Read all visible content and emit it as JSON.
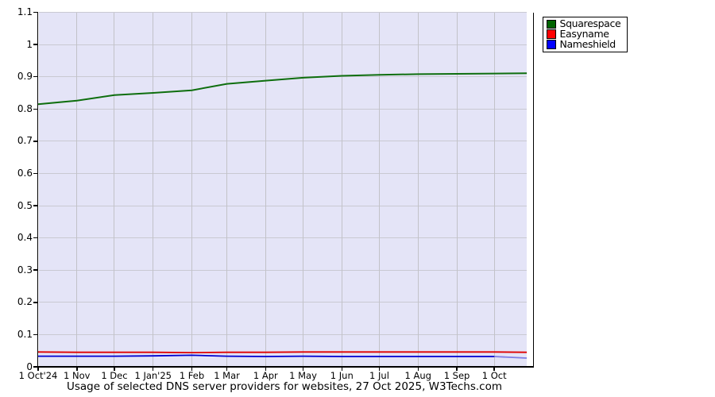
{
  "title": "Usage of selected DNS server providers for websites, 27 Oct 2025, W3Techs.com",
  "legend": {
    "items": [
      {
        "label": "Squarespace",
        "color": "#006400"
      },
      {
        "label": "Easyname",
        "color": "#ff0000"
      },
      {
        "label": "Nameshield",
        "color": "#0000ff"
      }
    ]
  },
  "chart_data": {
    "type": "line",
    "title": "Usage of selected DNS server providers for websites, 27 Oct 2025, W3Techs.com",
    "xlabel": "",
    "ylabel": "",
    "x_unit": "days since 1 Oct 2024",
    "xlim_days": [
      0,
      396
    ],
    "data_end_day": 391,
    "ylim": [
      0,
      1.1
    ],
    "grid": true,
    "plot_bg": "#e4e4f7",
    "grid_color": "#c9c9d2",
    "legend_position": "top-right-outside",
    "y_ticks": [
      {
        "v": 0,
        "label": "0"
      },
      {
        "v": 0.1,
        "label": "0.1"
      },
      {
        "v": 0.2,
        "label": "0.2"
      },
      {
        "v": 0.3,
        "label": "0.3"
      },
      {
        "v": 0.4,
        "label": "0.4"
      },
      {
        "v": 0.5,
        "label": "0.5"
      },
      {
        "v": 0.6,
        "label": "0.6"
      },
      {
        "v": 0.7,
        "label": "0.7"
      },
      {
        "v": 0.8,
        "label": "0.8"
      },
      {
        "v": 0.9,
        "label": "0.9"
      },
      {
        "v": 1,
        "label": "1"
      },
      {
        "v": 1.1,
        "label": "1.1"
      }
    ],
    "x_ticks": [
      {
        "day": 0,
        "label": "1 Oct'24"
      },
      {
        "day": 31,
        "label": "1 Nov"
      },
      {
        "day": 61,
        "label": "1 Dec"
      },
      {
        "day": 92,
        "label": "1 Jan'25"
      },
      {
        "day": 123,
        "label": "1 Feb"
      },
      {
        "day": 151,
        "label": "1 Mar"
      },
      {
        "day": 182,
        "label": "1 Apr"
      },
      {
        "day": 212,
        "label": "1 May"
      },
      {
        "day": 243,
        "label": "1 Jun"
      },
      {
        "day": 273,
        "label": "1 Jul"
      },
      {
        "day": 304,
        "label": "1 Aug"
      },
      {
        "day": 335,
        "label": "1 Sep"
      },
      {
        "day": 365,
        "label": "1 Oct"
      }
    ],
    "days": [
      0,
      31,
      61,
      92,
      123,
      151,
      182,
      212,
      243,
      273,
      304,
      335,
      365,
      391
    ],
    "series": [
      {
        "name": "Squarespace",
        "line_color": "#0e6e0e",
        "values": [
          0.815,
          0.826,
          0.843,
          0.85,
          0.858,
          0.878,
          0.888,
          0.897,
          0.903,
          0.906,
          0.908,
          0.909,
          0.91,
          0.911
        ]
      },
      {
        "name": "Easyname",
        "line_color": "#e00000",
        "values": [
          0.046,
          0.045,
          0.045,
          0.045,
          0.044,
          0.045,
          0.045,
          0.046,
          0.046,
          0.046,
          0.046,
          0.046,
          0.046,
          0.045
        ]
      },
      {
        "name": "Nameshield",
        "line_color": "#0000d0",
        "tail_fade_from_day": 365,
        "values": [
          0.033,
          0.033,
          0.033,
          0.034,
          0.036,
          0.033,
          0.032,
          0.033,
          0.032,
          0.032,
          0.032,
          0.032,
          0.032,
          0.027
        ]
      }
    ]
  }
}
